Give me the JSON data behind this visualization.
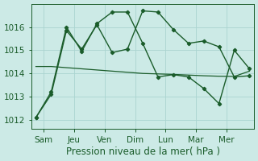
{
  "background_color": "#cceae6",
  "grid_color": "#aad4d0",
  "line_color": "#1a5c2a",
  "xlabel": "Pression niveau de la mer( hPa )",
  "xlabel_fontsize": 8.5,
  "tick_fontsize": 7.5,
  "xlim": [
    -0.3,
    14.3
  ],
  "ylim": [
    1011.6,
    1017.0
  ],
  "yticks": [
    1012,
    1013,
    1014,
    1015,
    1016
  ],
  "x_day_labels": [
    "Sam",
    "Jeu",
    "Ven",
    "Dim",
    "Lun",
    "Mar",
    "Mer"
  ],
  "x_day_positions": [
    0.5,
    2.5,
    4.5,
    6.5,
    8.5,
    10.5,
    12.5
  ],
  "series1_x": [
    0,
    1,
    2,
    3,
    4,
    5,
    6,
    7,
    8,
    9,
    10,
    11,
    12,
    13,
    14
  ],
  "series1_y": [
    1012.1,
    1013.1,
    1015.85,
    1015.05,
    1016.1,
    1014.9,
    1015.05,
    1016.7,
    1016.65,
    1015.9,
    1015.3,
    1015.4,
    1015.15,
    1013.85,
    1013.9
  ],
  "series2_x": [
    0,
    1,
    2,
    3,
    4,
    5,
    6,
    7,
    8,
    9,
    10,
    11,
    12,
    13,
    14
  ],
  "series2_y": [
    1014.3,
    1014.3,
    1014.25,
    1014.2,
    1014.15,
    1014.1,
    1014.05,
    1014.0,
    1013.98,
    1013.96,
    1013.93,
    1013.9,
    1013.88,
    1013.87,
    1014.1
  ],
  "series3_x": [
    0,
    1,
    2,
    3,
    4,
    5,
    6,
    7,
    8,
    9,
    10,
    11,
    12,
    13,
    14
  ],
  "series3_y": [
    1012.1,
    1013.2,
    1016.0,
    1014.95,
    1016.15,
    1016.65,
    1016.65,
    1015.3,
    1013.85,
    1013.95,
    1013.85,
    1013.35,
    1012.7,
    1015.0,
    1014.2
  ]
}
